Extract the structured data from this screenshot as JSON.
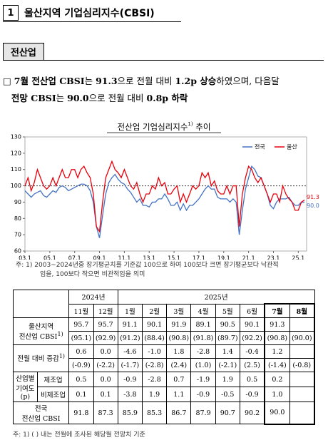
{
  "header": {
    "number": "1",
    "title": "울산지역 기업심리지수(CBSI)"
  },
  "section": "전산업",
  "paragraph": {
    "bullet": "□",
    "parts": [
      "7월 전산업 CBSI",
      "는 ",
      "91.3",
      "으로 전월 대비 ",
      "1.2p 상승",
      "하였으며, 다음달",
      "전망 CBSI",
      "는 ",
      "90.0",
      "으로 전월 대비 ",
      "0.8p 하락"
    ]
  },
  "chart_data": {
    "type": "line",
    "title": "전산업 기업심리지수",
    "title_sup": "1)",
    "title_suffix": " 추이",
    "x": [
      2003,
      2003.25,
      2003.5,
      2003.75,
      2004,
      2004.25,
      2004.5,
      2004.75,
      2005,
      2005.25,
      2005.5,
      2005.75,
      2006,
      2006.25,
      2006.5,
      2006.75,
      2007,
      2007.25,
      2007.5,
      2007.75,
      2008,
      2008.25,
      2008.5,
      2008.75,
      2009,
      2009.25,
      2009.5,
      2009.75,
      2010,
      2010.25,
      2010.5,
      2010.75,
      2011,
      2011.25,
      2011.5,
      2011.75,
      2012,
      2012.25,
      2012.5,
      2012.75,
      2013,
      2013.25,
      2013.5,
      2013.75,
      2014,
      2014.25,
      2014.5,
      2014.75,
      2015,
      2015.25,
      2015.5,
      2015.75,
      2016,
      2016.25,
      2016.5,
      2016.75,
      2017,
      2017.25,
      2017.5,
      2017.75,
      2018,
      2018.25,
      2018.5,
      2018.75,
      2019,
      2019.25,
      2019.5,
      2019.75,
      2020,
      2020.25,
      2020.5,
      2020.75,
      2021,
      2021.25,
      2021.5,
      2021.75,
      2022,
      2022.25,
      2022.5,
      2022.75,
      2023,
      2023.25,
      2023.5,
      2023.75,
      2024,
      2024.25,
      2024.5,
      2024.75,
      2025,
      2025.25,
      2025.5
    ],
    "series": [
      {
        "name": "전국",
        "color": "#4472c4",
        "end_label": "90.0",
        "values": [
          97,
          95,
          93,
          95,
          96,
          97,
          94,
          93,
          95,
          97,
          96,
          99,
          100,
          99,
          97,
          98,
          99,
          100,
          101,
          101,
          100,
          97,
          90,
          75,
          68,
          82,
          95,
          102,
          105,
          107,
          104,
          102,
          101,
          98,
          96,
          93,
          90,
          92,
          88,
          88,
          87,
          90,
          90,
          92,
          92,
          95,
          92,
          88,
          88,
          90,
          85,
          89,
          85,
          88,
          88,
          90,
          92,
          95,
          98,
          100,
          98,
          98,
          93,
          92,
          92,
          92,
          90,
          92,
          90,
          70,
          85,
          98,
          105,
          112,
          110,
          106,
          105,
          100,
          95,
          88,
          86,
          90,
          92,
          92,
          92,
          93,
          90,
          88,
          88,
          90,
          90
        ]
      },
      {
        "name": "울산",
        "color": "#e8000b",
        "end_label": "91.3",
        "values": [
          100,
          105,
          97,
          102,
          110,
          105,
          100,
          98,
          100,
          105,
          100,
          105,
          110,
          105,
          105,
          110,
          110,
          105,
          110,
          112,
          108,
          105,
          95,
          75,
          72,
          90,
          105,
          110,
          115,
          110,
          108,
          105,
          110,
          105,
          100,
          98,
          102,
          95,
          90,
          95,
          95,
          100,
          98,
          105,
          100,
          102,
          95,
          95,
          98,
          100,
          90,
          95,
          90,
          95,
          100,
          98,
          100,
          108,
          105,
          108,
          100,
          103,
          97,
          95,
          95,
          100,
          95,
          100,
          100,
          75,
          95,
          105,
          112,
          110,
          105,
          102,
          105,
          100,
          95,
          90,
          95,
          95,
          90,
          100,
          95,
          92,
          90,
          85,
          85,
          90,
          91.3
        ]
      }
    ],
    "xlim": [
      2003,
      2025.67
    ],
    "xticks": [
      {
        "value": 2003,
        "label": "03.1"
      },
      {
        "value": 2005,
        "label": "05.1"
      },
      {
        "value": 2007,
        "label": "07.1"
      },
      {
        "value": 2009,
        "label": "09.1"
      },
      {
        "value": 2011,
        "label": "11.1"
      },
      {
        "value": 2013,
        "label": "13.1"
      },
      {
        "value": 2015,
        "label": "15.1"
      },
      {
        "value": 2017,
        "label": "17.1"
      },
      {
        "value": 2019,
        "label": "19.1"
      },
      {
        "value": 2021,
        "label": "21.1"
      },
      {
        "value": 2023,
        "label": "23.1"
      },
      {
        "value": 2025,
        "label": "25.1"
      }
    ],
    "ylim": [
      60,
      130
    ],
    "yticks": [
      60,
      70,
      80,
      90,
      100,
      110,
      120,
      130
    ],
    "reference_line": 100,
    "legend": "upper right",
    "notes": [
      "주: 1) 2003~2024년중 장기평균치를 기준값 100으로 하여 100보다 크면 장기평균보다 낙관적",
      "임을, 100보다 작으면 비관적임을 의미"
    ]
  },
  "table": {
    "years": [
      "2024년",
      "2025년"
    ],
    "months": [
      "11월",
      "12월",
      "1월",
      "2월",
      "3월",
      "4월",
      "5월",
      "6월",
      "7월",
      "8월"
    ],
    "main": [
      {
        "label": [
          "울산지역",
          "전산업 CBSI"
        ],
        "sup": "1)",
        "values": [
          "95.7",
          "95.7",
          "91.1",
          "90.1",
          "91.9",
          "89.1",
          "90.5",
          "90.1",
          "91.3"
        ],
        "prev": [
          "(95.1)",
          "(92.9)",
          "(91.2)",
          "(88.4)",
          "(90.8)",
          "(91.8)",
          "(89.7)",
          "(92.2)",
          "(90.8)",
          "(90.0)"
        ]
      },
      {
        "label": [
          "전월 대비 증감"
        ],
        "sup": "1)",
        "values": [
          "0.6",
          "0.0",
          "-4.6",
          "-1.0",
          "1.8",
          "-2.8",
          "1.4",
          "-0.4",
          "1.2"
        ],
        "prev": [
          "(-0.9)",
          "(-2.2)",
          "(-1.7)",
          "(-2.8)",
          "(2.4)",
          "(1.0)",
          "(-2.1)",
          "(2.5)",
          "(-1.4)",
          "(-0.8)"
        ]
      }
    ],
    "contrib": {
      "label": [
        "산업별",
        "기여도",
        "(p)"
      ],
      "rows": [
        {
          "label": "제조업",
          "values": [
            "0.5",
            "0.0",
            "-0.9",
            "-2.8",
            "0.7",
            "-1.9",
            "1.9",
            "0.5",
            "0.2"
          ]
        },
        {
          "label": "비제조업",
          "values": [
            "0.1",
            "0.1",
            "-3.8",
            "1.9",
            "1.1",
            "-0.9",
            "-0.5",
            "-0.9",
            "1.0"
          ]
        }
      ]
    },
    "national": {
      "label": [
        "전국",
        "전산업 CBSI"
      ],
      "values": [
        "91.8",
        "87.3",
        "85.9",
        "85.3",
        "86.7",
        "87.9",
        "90.7",
        "90.2",
        "90.0"
      ]
    },
    "note": "주: 1) (   ) 내는 전월에 조사된 해당월 전망치 기준"
  }
}
